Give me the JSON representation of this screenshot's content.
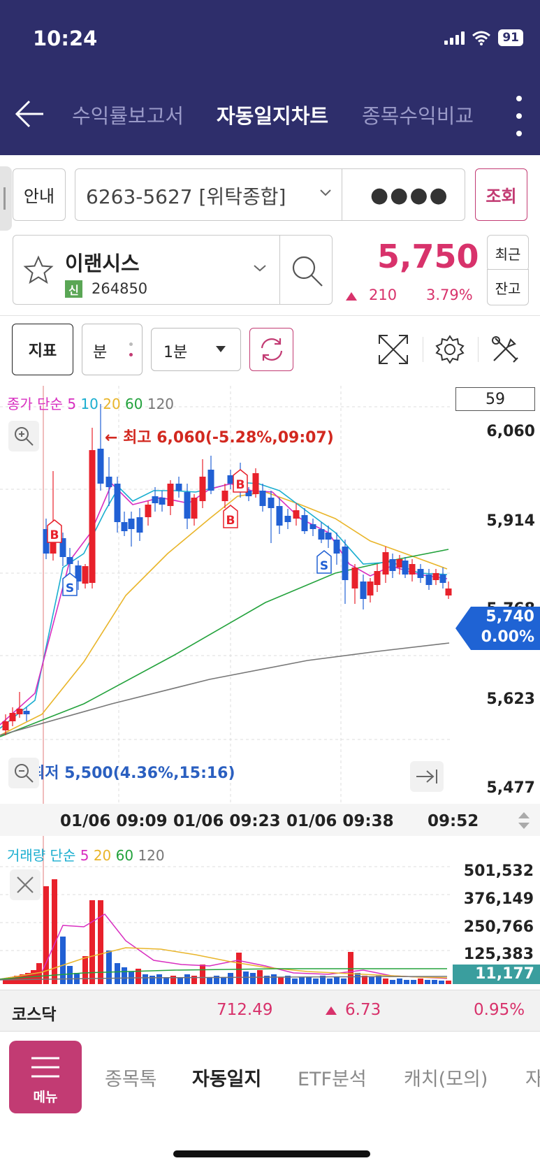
{
  "status": {
    "time": "10:24",
    "battery": "91"
  },
  "nav": {
    "tabs": [
      {
        "label": "수익률보고서"
      },
      {
        "label": "자동일지차트"
      },
      {
        "label": "종목수익비교"
      }
    ]
  },
  "account": {
    "guide_label": "안내",
    "account_number": "6263-5627 [위탁종합]",
    "password_mask": "●●●●",
    "query_label": "조회"
  },
  "stock": {
    "name": "이랜시스",
    "credit_badge": "신",
    "code": "264850",
    "price": "5,750",
    "change": "210",
    "change_pct": "3.79%",
    "recent_label": "최근",
    "balance_label": "잔고"
  },
  "toolbar": {
    "indicator_label": "지표",
    "period_label": "분",
    "interval": "1분"
  },
  "chart": {
    "legend": {
      "title": "종가 단순",
      "ma5": "5",
      "ma10": "10",
      "ma20": "20",
      "ma60": "60",
      "ma120": "120"
    },
    "badge_count": "59",
    "high_annotation": "최고 6,060(-5.28%,09:07)",
    "low_annotation": "최저 5,500(4.36%,15:16)",
    "y_ticks": [
      "6,060",
      "5,914",
      "5,768",
      "5,623",
      "5,477"
    ],
    "current_price": "5,740",
    "current_pct": "0.00%",
    "time_ticks": [
      "01/06 09:09",
      "01/06 09:23",
      "01/06 09:38",
      "09:52"
    ],
    "colors": {
      "up": "#e8212b",
      "down": "#2160d4",
      "ma5": "#d82ec0",
      "ma10": "#1aaed0",
      "ma20": "#e9b52a",
      "ma60": "#23a23c",
      "ma120": "#777777"
    }
  },
  "volume": {
    "legend": {
      "title": "거래량 단순",
      "ma5": "5",
      "ma20": "20",
      "ma60": "60",
      "ma120": "120"
    },
    "y_ticks": [
      "501,532",
      "376,149",
      "250,766",
      "125,383"
    ],
    "current": "11,177"
  },
  "index": {
    "name": "코스닥",
    "value": "712.49",
    "change": "6.73",
    "pct": "0.95%"
  },
  "bottom_nav": {
    "menu_label": "메뉴",
    "tabs": [
      {
        "label": "종목톡"
      },
      {
        "label": "자동일지"
      },
      {
        "label": "ETF분석"
      },
      {
        "label": "캐치(모의)"
      },
      {
        "label": "자"
      }
    ]
  }
}
